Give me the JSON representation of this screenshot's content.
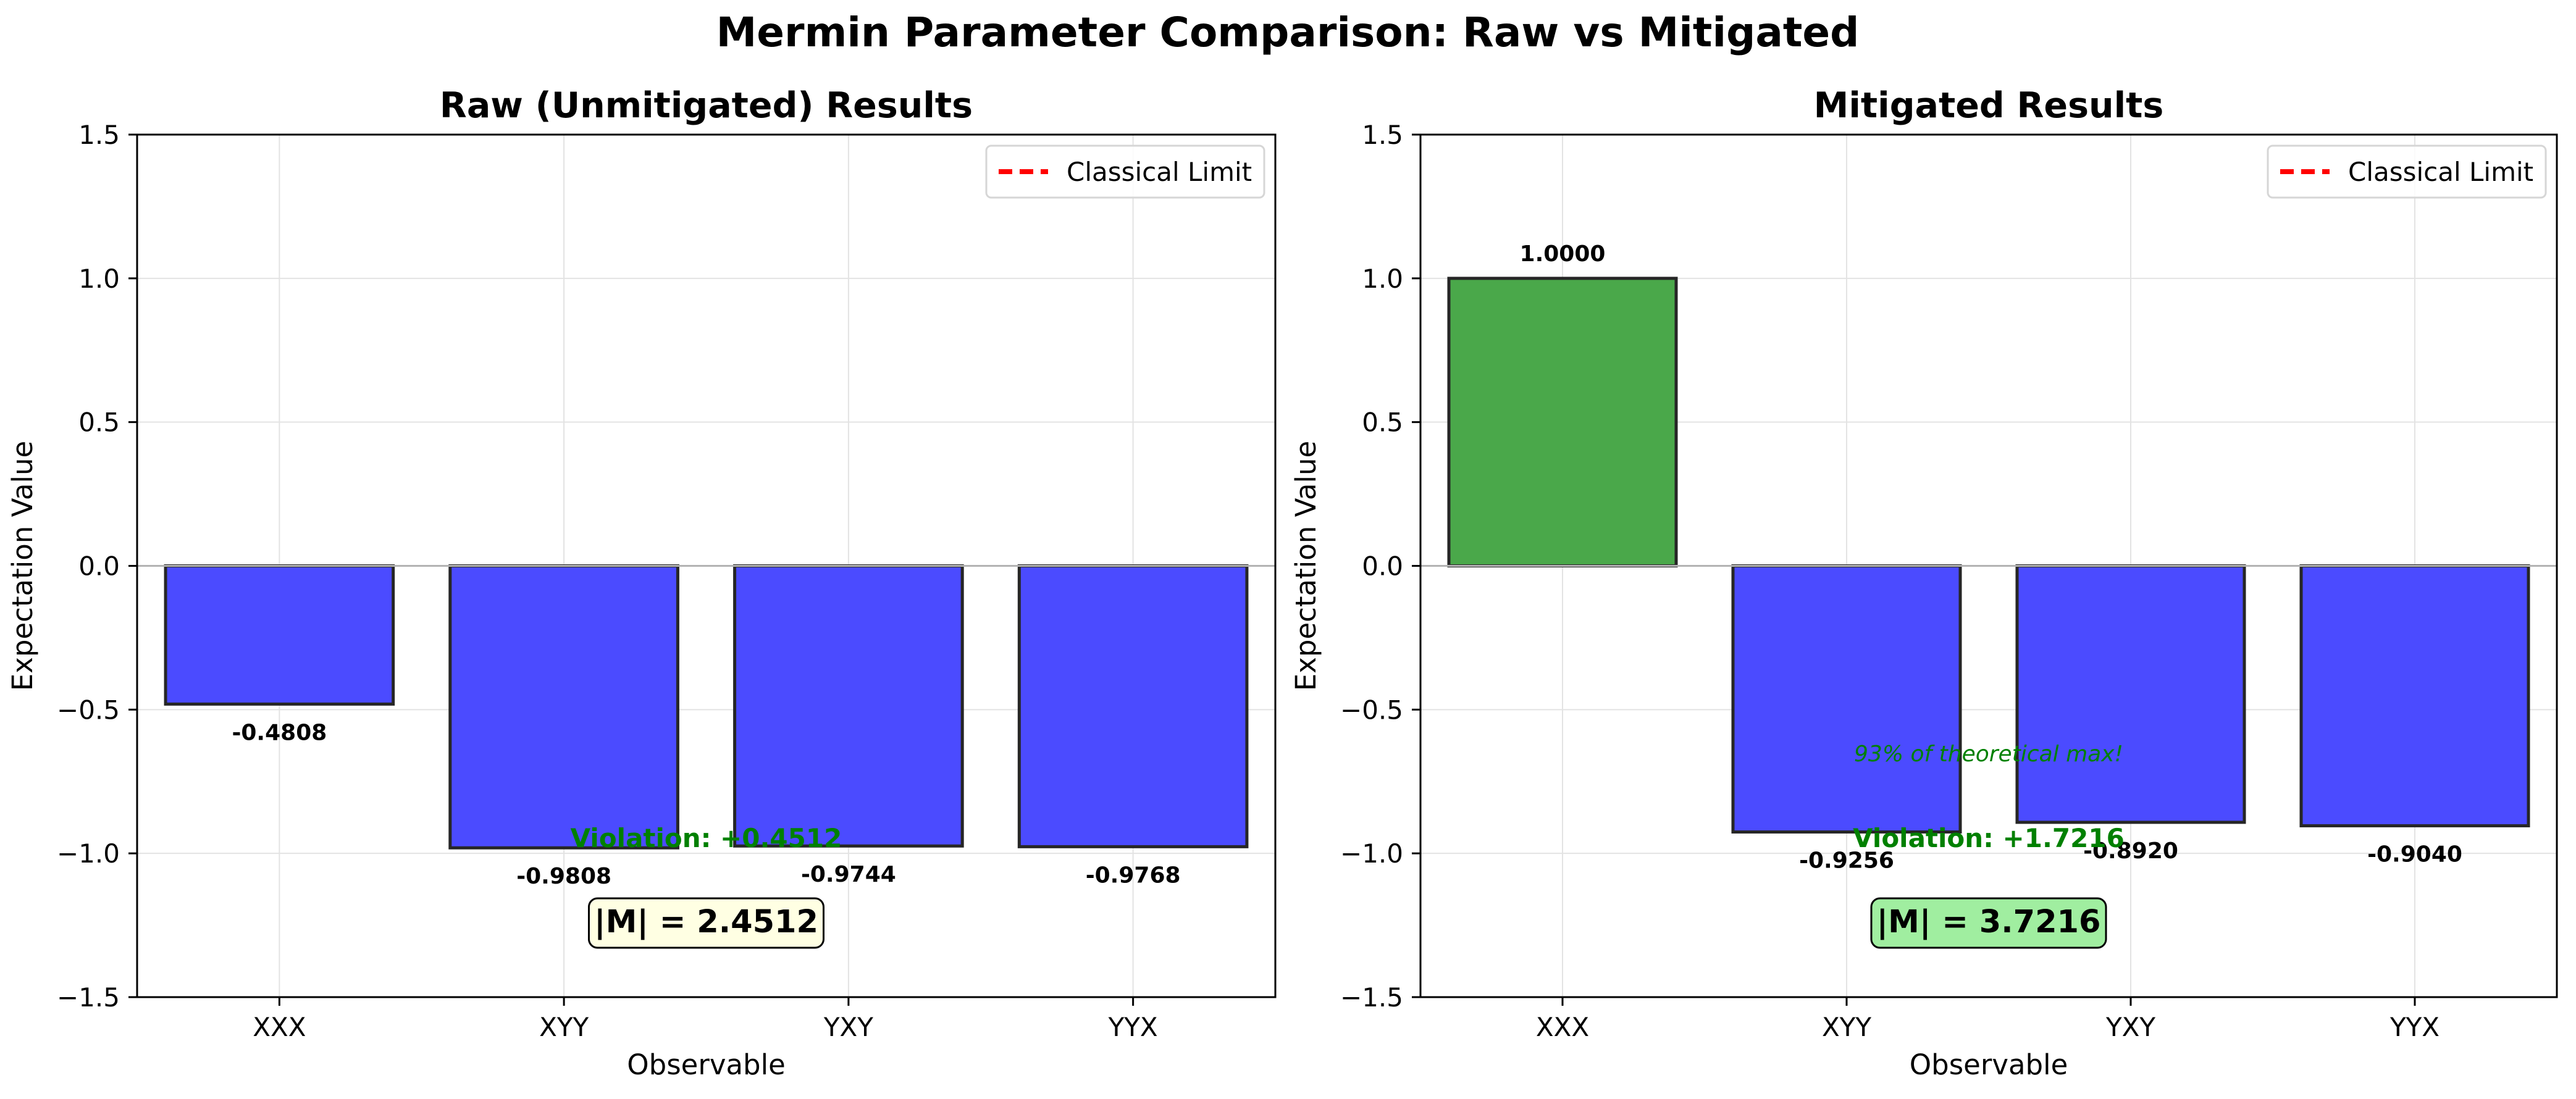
{
  "figure": {
    "suptitle": "Mermin Parameter Comparison: Raw vs Mitigated"
  },
  "colors": {
    "positive_bar": "#4aa84a",
    "negative_bar": "#4b4bff",
    "bar_edge": "#262626",
    "limit_line": "#ff0000",
    "violation_text": "#008000",
    "grid": "#e3e3e3",
    "zero_line": "#b3b3b3",
    "m_box_raw": "#ffffe3",
    "m_box_mitigated": "#a0eea0"
  },
  "chart_data": [
    {
      "type": "bar",
      "title": "Raw (Unmitigated) Results",
      "xlabel": "Observable",
      "ylabel": "Expectation Value",
      "categories": [
        "XXX",
        "XYY",
        "YXY",
        "YYX"
      ],
      "values": [
        -0.4808,
        -0.9808,
        -0.9744,
        -0.9768
      ],
      "value_labels": [
        "-0.4808",
        "-0.9808",
        "-0.9744",
        "-0.9768"
      ],
      "ylim": [
        -1.5,
        1.5
      ],
      "yticks": [
        -1.5,
        -1.0,
        -0.5,
        0.0,
        0.5,
        1.0,
        1.5
      ],
      "ytick_labels": [
        "−1.5",
        "−1.0",
        "−0.5",
        "0.0",
        "0.5",
        "1.0",
        "1.5"
      ],
      "grid": true,
      "legend": {
        "entries": [
          "Classical Limit"
        ],
        "placement": "top-right"
      },
      "annotations": {
        "violation": "Violation: +0.4512",
        "mermin": "|M| = 2.4512"
      }
    },
    {
      "type": "bar",
      "title": "Mitigated Results",
      "xlabel": "Observable",
      "ylabel": "Expectation Value",
      "categories": [
        "XXX",
        "XYY",
        "YXY",
        "YYX"
      ],
      "values": [
        1.0,
        -0.9256,
        -0.892,
        -0.904
      ],
      "value_labels": [
        "1.0000",
        "-0.9256",
        "-0.8920",
        "-0.9040"
      ],
      "ylim": [
        -1.5,
        1.5
      ],
      "yticks": [
        -1.5,
        -1.0,
        -0.5,
        0.0,
        0.5,
        1.0,
        1.5
      ],
      "ytick_labels": [
        "−1.5",
        "−1.0",
        "−0.5",
        "0.0",
        "0.5",
        "1.0",
        "1.5"
      ],
      "grid": true,
      "legend": {
        "entries": [
          "Classical Limit"
        ],
        "placement": "top-right"
      },
      "annotations": {
        "note": "93% of theoretical max!",
        "violation": "Violation: +1.7216",
        "mermin": "|M| = 3.7216"
      }
    }
  ]
}
